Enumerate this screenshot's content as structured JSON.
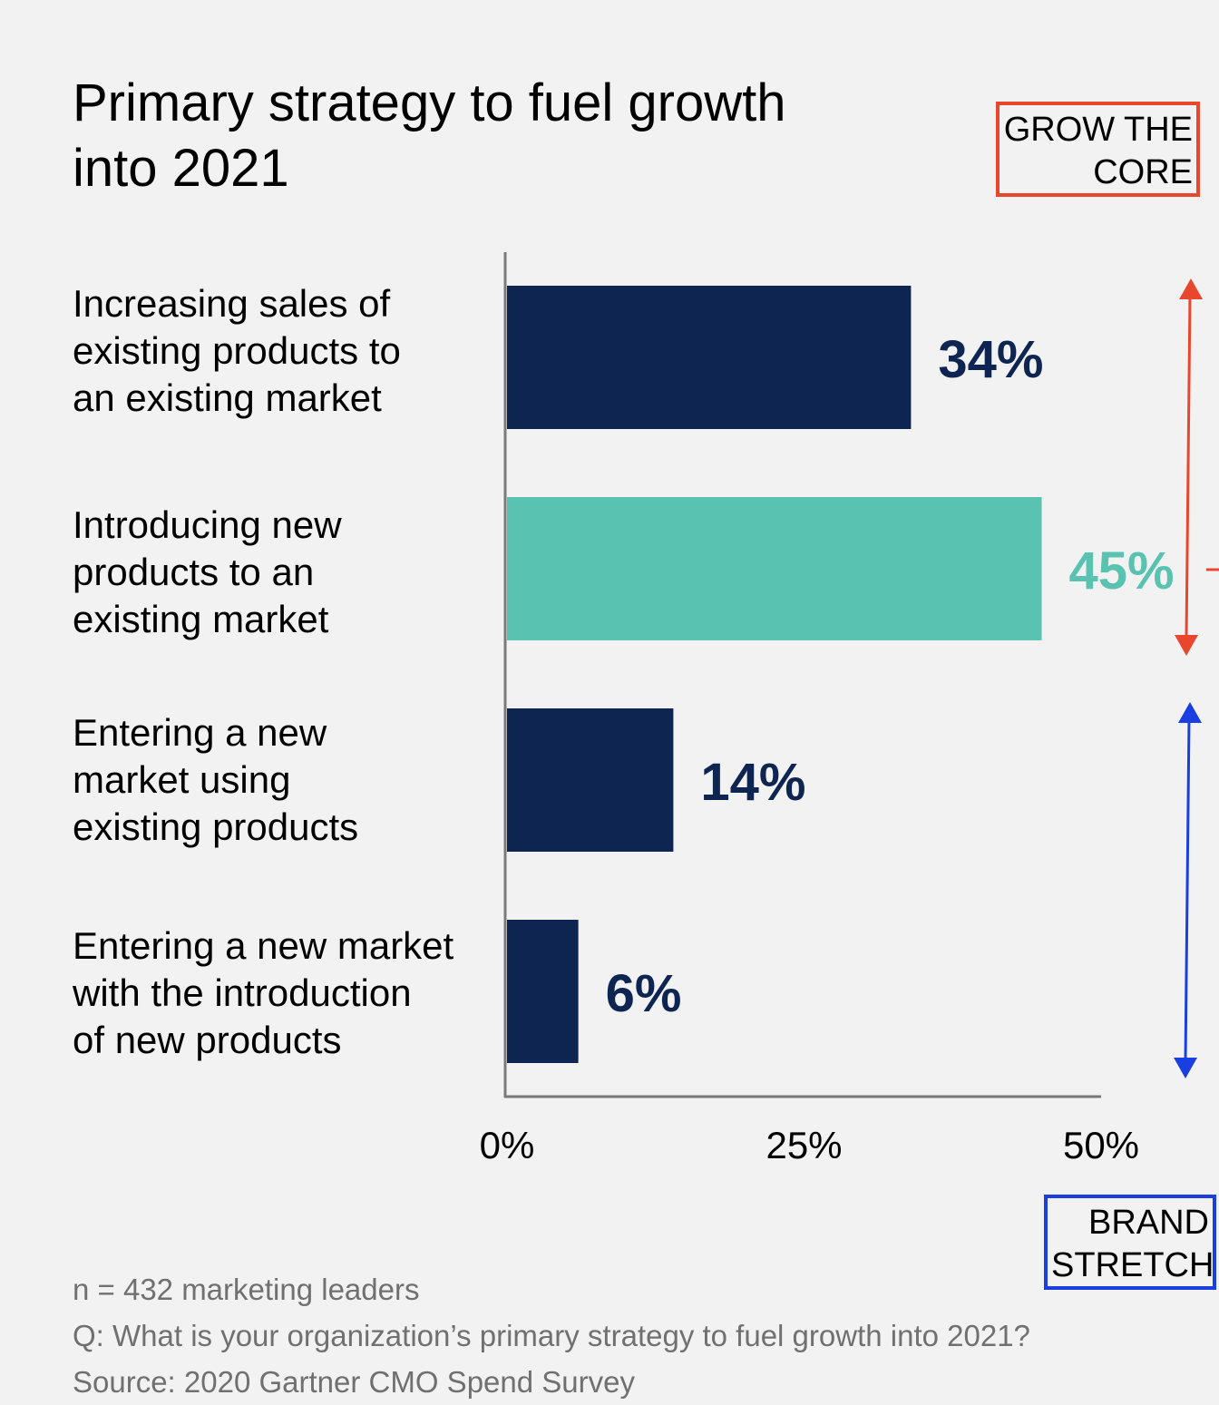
{
  "chart_data": {
    "type": "bar",
    "orientation": "horizontal",
    "title": "Primary strategy to fuel growth\ninto 2021",
    "categories": [
      "Increasing sales of\nexisting products to\nan existing market",
      "Introducing new\nproducts to an\nexisting market",
      "Entering a new\nmarket using\nexisting products",
      "Entering a new market\nwith the introduction\nof new products"
    ],
    "values": [
      34,
      45,
      14,
      6
    ],
    "value_labels": [
      "34%",
      "45%",
      "14%",
      "6%"
    ],
    "bar_colors": [
      "#0f2551",
      "#5ac2b0",
      "#0f2551",
      "#0f2551"
    ],
    "label_colors": [
      "#0f2551",
      "#5ac2b0",
      "#0f2551",
      "#0f2551"
    ],
    "xlim": [
      0,
      50
    ],
    "xticks": [
      0,
      25,
      50
    ],
    "xtick_labels": [
      "0%",
      "25%",
      "50%"
    ],
    "grid": false
  },
  "annotations": {
    "grow_the_core": {
      "label": "GROW THE\nCORE",
      "color": "#e8472d"
    },
    "brand_stretch": {
      "label": "BRAND\nSTRETCH",
      "color": "#1a3fe0"
    }
  },
  "footnotes": {
    "sample": "n = 432 marketing leaders",
    "question": "Q: What is your organization’s primary strategy to fuel growth into 2021?",
    "source": "Source: 2020 Gartner CMO Spend Survey"
  }
}
